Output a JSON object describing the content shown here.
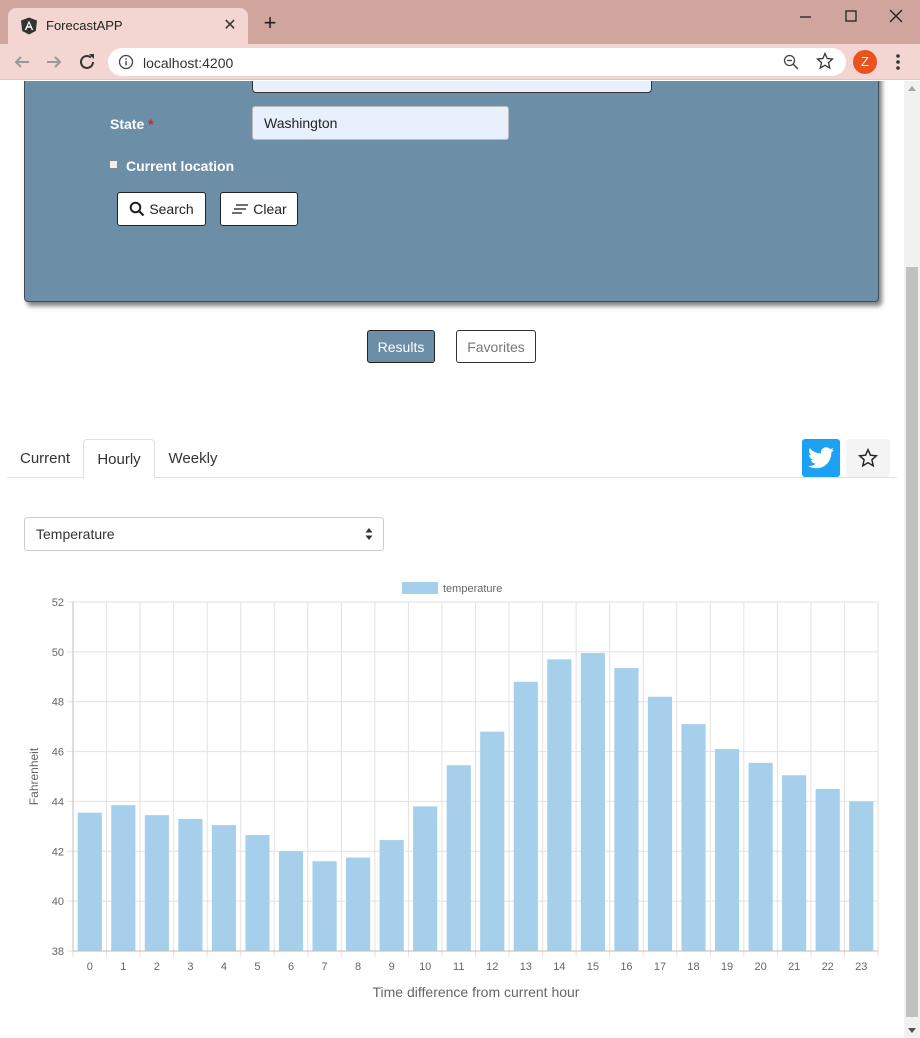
{
  "browser": {
    "tab_title": "ForecastAPP",
    "url": "localhost:4200",
    "profile_initial": "Z"
  },
  "form": {
    "state_label": "State",
    "required_mark": "*",
    "state_value": "Washington",
    "current_location_label": "Current location",
    "search_label": "Search",
    "clear_label": "Clear"
  },
  "toggle": {
    "results_label": "Results",
    "favorites_label": "Favorites"
  },
  "tabs": {
    "current": "Current",
    "hourly": "Hourly",
    "weekly": "Weekly"
  },
  "select": {
    "selected": "Temperature"
  },
  "colors": {
    "panel": "#6c8fa7",
    "bar": "#a5cfeb",
    "twitter": "#1da1f2"
  },
  "chart_data": {
    "type": "bar",
    "legend": "temperature",
    "xlabel": "Time difference from current hour",
    "ylabel": "Fahrenheit",
    "ylim": [
      38,
      52
    ],
    "yticks": [
      38,
      40,
      42,
      44,
      46,
      48,
      50,
      52
    ],
    "categories": [
      "0",
      "1",
      "2",
      "3",
      "4",
      "5",
      "6",
      "7",
      "8",
      "9",
      "10",
      "11",
      "12",
      "13",
      "14",
      "15",
      "16",
      "17",
      "18",
      "19",
      "20",
      "21",
      "22",
      "23"
    ],
    "values": [
      43.55,
      43.85,
      43.45,
      43.3,
      43.05,
      42.65,
      42.0,
      41.6,
      41.75,
      42.45,
      43.8,
      45.45,
      46.8,
      48.8,
      49.7,
      49.95,
      49.35,
      48.2,
      47.1,
      46.1,
      45.55,
      45.05,
      44.5,
      44.0
    ]
  }
}
